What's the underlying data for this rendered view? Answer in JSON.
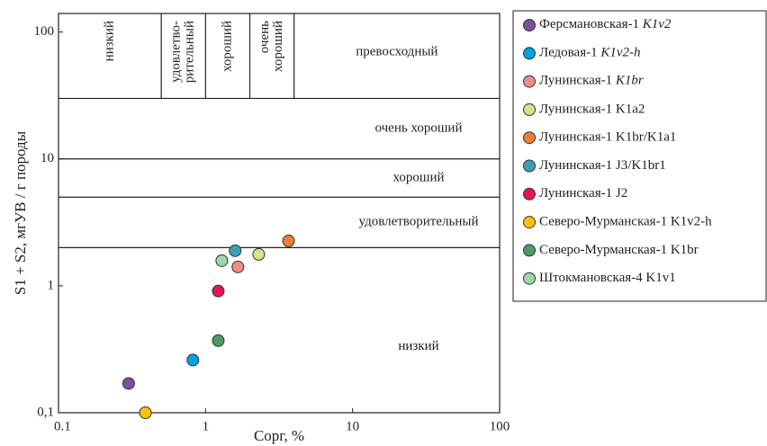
{
  "chart_data": {
    "type": "scatter",
    "x_label": "Сорг, %",
    "y_label": "S1 + S2, мгУВ / г породы",
    "log_x": true,
    "log_y": true,
    "xlim": [
      0.1,
      100
    ],
    "xticks": [
      0.1,
      1,
      10,
      100
    ],
    "ylim": [
      0.1,
      140
    ],
    "yticks": [
      {
        "value": 0.1,
        "label": "0,1"
      },
      1,
      10,
      100
    ],
    "x_boundaries": [
      0.5,
      1,
      2,
      4
    ],
    "y_boundaries": [
      2,
      5,
      10,
      30
    ],
    "x_zone_labels": [
      [
        "низкий"
      ],
      [
        "удовлетво-",
        "рительный"
      ],
      [
        "хороший"
      ],
      [
        "очень",
        "хороший"
      ],
      [
        "превосходный"
      ]
    ],
    "y_zone_labels": [
      "очень хороший",
      "хороший",
      "удовлетворительный",
      "низкий"
    ],
    "series": [
      {
        "name": "Ферсмановская-1 K1v2",
        "italic_suffix": true,
        "color": "#7b4fa0",
        "x": [
          0.3
        ],
        "values": [
          0.17
        ]
      },
      {
        "name": "Ледовая-1 K1v2-h",
        "italic_suffix": true,
        "color": "#00a0e3",
        "x": [
          0.82
        ],
        "values": [
          0.26
        ]
      },
      {
        "name": "Лунинская-1 K1br",
        "italic_suffix": true,
        "color": "#f08d86",
        "x": [
          1.66
        ],
        "values": [
          1.41
        ]
      },
      {
        "name": "Лунинская-1 K1a2",
        "italic_suffix": false,
        "color": "#d6e28c",
        "x": [
          2.3
        ],
        "values": [
          1.77
        ]
      },
      {
        "name": "Лунинская-1 K1br/K1a1",
        "italic_suffix": false,
        "color": "#ec7f3b",
        "x": [
          3.67
        ],
        "values": [
          2.26
        ]
      },
      {
        "name": "Лунинская-1 J3/K1br1",
        "italic_suffix": false,
        "color": "#3a9fb0",
        "x": [
          1.59
        ],
        "values": [
          1.89
        ]
      },
      {
        "name": "Лунинская-1 J2",
        "italic_suffix": false,
        "color": "#e3174f",
        "x": [
          1.22
        ],
        "values": [
          0.91
        ]
      },
      {
        "name": "Северо-Мурманская-1 K1v2-h",
        "italic_suffix": false,
        "color": "#fdc10e",
        "x": [
          0.39
        ],
        "values": [
          0.1
        ]
      },
      {
        "name": "Северо-Мурманская-1 K1br",
        "italic_suffix": false,
        "color": "#4c9a6a",
        "x": [
          1.22
        ],
        "values": [
          0.37
        ]
      },
      {
        "name": "Штокмановская-4 K1v1",
        "italic_suffix": false,
        "color": "#9fd6a8",
        "x": [
          1.29
        ],
        "values": [
          1.58
        ]
      }
    ]
  }
}
